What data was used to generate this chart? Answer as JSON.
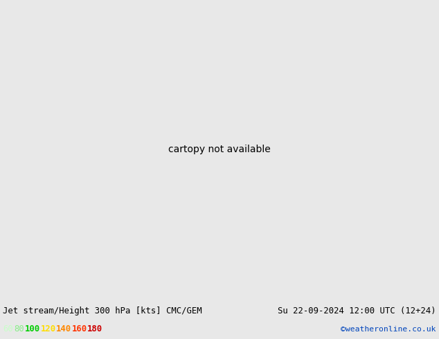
{
  "title_left": "Jet stream/Height 300 hPa [kts] CMC/GEM",
  "title_right": "Su 22-09-2024 12:00 UTC (12+24)",
  "credit": "©weatheronline.co.uk",
  "legend_values": [
    60,
    80,
    100,
    120,
    140,
    160,
    180
  ],
  "legend_colors": [
    "#c8ffc8",
    "#88ee88",
    "#00cc00",
    "#ffdd00",
    "#ff8800",
    "#ff3300",
    "#cc0000"
  ],
  "bg_map_light": "#f0f0f0",
  "land_color": "#d0d0d0",
  "sea_color": "#e8e8e8",
  "bottom_bar_color": "#f0f0f0",
  "title_color": "#000000",
  "credit_color": "#0044bb",
  "jet_light": "#d4ffd4",
  "jet_mid_light": "#aaffaa",
  "jet_mid": "#77dd77",
  "jet_dark": "#00bb00",
  "jet_very_dark": "#008800",
  "contour_lw": 1.4,
  "label_fontsize": 7.5
}
